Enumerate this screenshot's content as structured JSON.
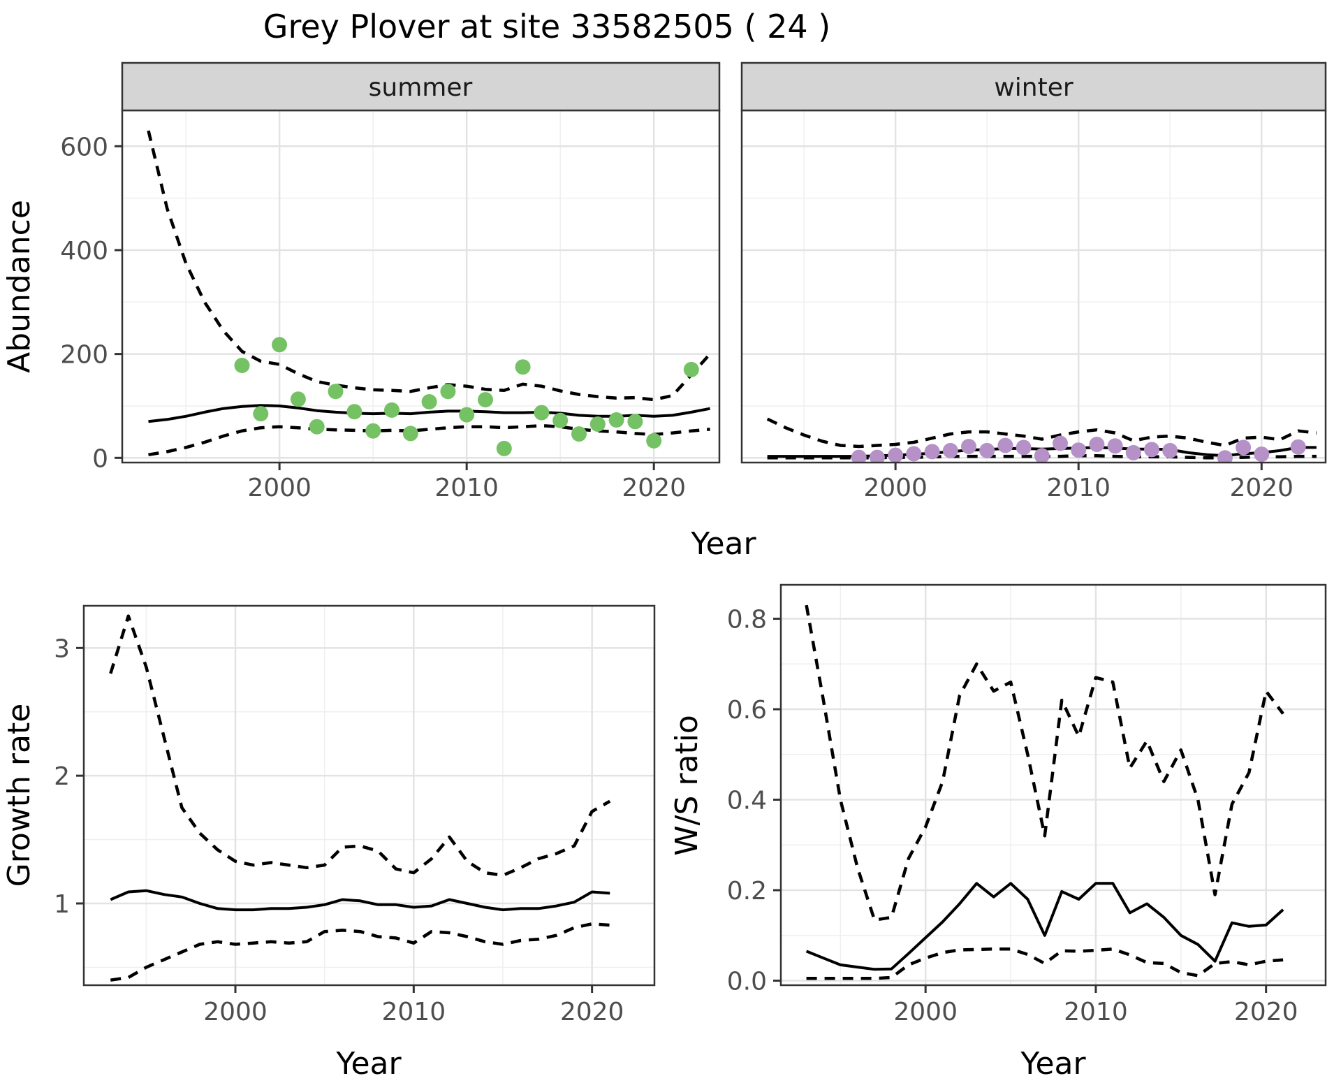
{
  "title": "Grey Plover at site 33582505 ( 24 )",
  "colors": {
    "summer_points": "#74c264",
    "winter_points": "#b691c8",
    "line": "#000000",
    "strip_background": "#d5d5d5",
    "panel_border": "#333333",
    "grid_major": "#e3e3e3",
    "grid_minor": "#efefef",
    "tick_label": "#4d4d4d"
  },
  "chart_data": [
    {
      "type": "line+scatter",
      "facet_label": "summer",
      "xlabel": "Year",
      "ylabel": "Abundance",
      "xlim": [
        1991.6,
        2023.5
      ],
      "ylim": [
        -9,
        669
      ],
      "xticks": [
        2000,
        2010,
        2020
      ],
      "xticklabels": [
        "2000",
        "2010",
        "2020"
      ],
      "xminor": [
        1995,
        2005,
        2015
      ],
      "yticks": [
        0,
        200,
        400,
        600
      ],
      "yticklabels": [
        "0",
        "200",
        "400",
        "600"
      ],
      "yminor": [
        100,
        300,
        500
      ],
      "grid": true,
      "series": [
        {
          "name": "median",
          "style": "solid",
          "start_year": 1993,
          "values": [
            70,
            74,
            80,
            88,
            95,
            99,
            101,
            100,
            96,
            91,
            88,
            86,
            85,
            86,
            85,
            88,
            90,
            90,
            89,
            87,
            87,
            88,
            86,
            82,
            80,
            80,
            82,
            80,
            82,
            88,
            95
          ]
        },
        {
          "name": "upper_ci",
          "style": "dashed",
          "start_year": 1993,
          "values": [
            630,
            480,
            375,
            300,
            245,
            205,
            186,
            180,
            162,
            147,
            140,
            135,
            131,
            130,
            128,
            135,
            141,
            138,
            132,
            130,
            142,
            138,
            129,
            122,
            118,
            115,
            116,
            112,
            120,
            160,
            200
          ]
        },
        {
          "name": "lower_ci",
          "style": "dashed",
          "start_year": 1993,
          "values": [
            6,
            12,
            20,
            30,
            42,
            52,
            58,
            60,
            58,
            55,
            54,
            53,
            52,
            53,
            52,
            55,
            58,
            60,
            60,
            58,
            60,
            62,
            60,
            55,
            52,
            50,
            47,
            45,
            48,
            52,
            55
          ]
        }
      ],
      "points": {
        "name": "observed-counts",
        "color": "#74c264",
        "data": [
          [
            1998,
            178
          ],
          [
            1999,
            85
          ],
          [
            2000,
            218
          ],
          [
            2001,
            113
          ],
          [
            2002,
            60
          ],
          [
            2003,
            128
          ],
          [
            2004,
            89
          ],
          [
            2005,
            52
          ],
          [
            2006,
            92
          ],
          [
            2007,
            47
          ],
          [
            2008,
            108
          ],
          [
            2009,
            128
          ],
          [
            2010,
            83
          ],
          [
            2011,
            112
          ],
          [
            2012,
            18
          ],
          [
            2013,
            175
          ],
          [
            2014,
            87
          ],
          [
            2015,
            72
          ],
          [
            2016,
            46
          ],
          [
            2017,
            65
          ],
          [
            2018,
            73
          ],
          [
            2019,
            70
          ],
          [
            2020,
            33
          ],
          [
            2022,
            170
          ]
        ]
      }
    },
    {
      "type": "line+scatter",
      "facet_label": "winter",
      "xlabel": "Year",
      "ylabel": "Abundance",
      "xlim": [
        1991.6,
        2023.5
      ],
      "ylim": [
        -9,
        669
      ],
      "xticks": [
        2000,
        2010,
        2020
      ],
      "xticklabels": [
        "2000",
        "2010",
        "2020"
      ],
      "xminor": [
        1995,
        2005,
        2015
      ],
      "yticks": [
        0,
        200,
        400,
        600
      ],
      "yticklabels": [
        "0",
        "200",
        "400",
        "600"
      ],
      "yminor": [
        100,
        300,
        500
      ],
      "grid": true,
      "series": [
        {
          "name": "median",
          "style": "solid",
          "start_year": 1993,
          "values": [
            3,
            3,
            3,
            3,
            3,
            3,
            4,
            5,
            7,
            9,
            12,
            15,
            16,
            18,
            18,
            17,
            18,
            19,
            20,
            19,
            17,
            17,
            16,
            10,
            6,
            4,
            8,
            10,
            14,
            20,
            20
          ]
        },
        {
          "name": "upper_ci",
          "style": "dashed",
          "start_year": 1993,
          "values": [
            75,
            58,
            44,
            32,
            24,
            22,
            24,
            26,
            30,
            38,
            46,
            50,
            50,
            46,
            42,
            36,
            44,
            50,
            54,
            48,
            33,
            40,
            42,
            38,
            30,
            24,
            38,
            40,
            35,
            52,
            48
          ]
        },
        {
          "name": "lower_ci",
          "style": "dashed",
          "start_year": 1993,
          "values": [
            0,
            0,
            0,
            0,
            0,
            0,
            0,
            1,
            1,
            2,
            3,
            3,
            3,
            3,
            3,
            3,
            3,
            4,
            4,
            3,
            2,
            2,
            2,
            1,
            0,
            0,
            1,
            2,
            2,
            3,
            3
          ]
        }
      ],
      "points": {
        "name": "observed-counts",
        "color": "#b691c8",
        "data": [
          [
            1998,
            1
          ],
          [
            1999,
            1
          ],
          [
            2000,
            5
          ],
          [
            2001,
            8
          ],
          [
            2002,
            12
          ],
          [
            2003,
            14
          ],
          [
            2004,
            22
          ],
          [
            2005,
            14
          ],
          [
            2006,
            24
          ],
          [
            2007,
            20
          ],
          [
            2008,
            4
          ],
          [
            2009,
            28
          ],
          [
            2010,
            15
          ],
          [
            2011,
            26
          ],
          [
            2012,
            23
          ],
          [
            2013,
            10
          ],
          [
            2014,
            16
          ],
          [
            2015,
            14
          ],
          [
            2018,
            0
          ],
          [
            2019,
            20
          ],
          [
            2020,
            7
          ],
          [
            2022,
            21
          ]
        ]
      }
    },
    {
      "type": "line",
      "facet_label": "",
      "xlabel": "Year",
      "ylabel": "Growth rate",
      "xlim": [
        1991.5,
        2023.5
      ],
      "ylim": [
        0.36,
        3.33
      ],
      "xticks": [
        2000,
        2010,
        2020
      ],
      "xticklabels": [
        "2000",
        "2010",
        "2020"
      ],
      "xminor": [
        1995,
        2005,
        2015
      ],
      "yticks": [
        1,
        2,
        3
      ],
      "yticklabels": [
        "1",
        "2",
        "3"
      ],
      "yminor": [
        0.5,
        1.5,
        2.5
      ],
      "grid": true,
      "series": [
        {
          "name": "median",
          "style": "solid",
          "start_year": 1993,
          "values": [
            1.03,
            1.09,
            1.1,
            1.07,
            1.05,
            1.0,
            0.96,
            0.95,
            0.95,
            0.96,
            0.96,
            0.97,
            0.99,
            1.03,
            1.02,
            0.99,
            0.99,
            0.97,
            0.98,
            1.03,
            1.0,
            0.97,
            0.95,
            0.96,
            0.96,
            0.98,
            1.01,
            1.09,
            1.08
          ]
        },
        {
          "name": "upper_ci",
          "style": "dashed",
          "start_year": 1993,
          "values": [
            2.8,
            3.25,
            2.85,
            2.3,
            1.75,
            1.55,
            1.42,
            1.33,
            1.3,
            1.32,
            1.3,
            1.28,
            1.3,
            1.44,
            1.45,
            1.41,
            1.27,
            1.24,
            1.35,
            1.52,
            1.33,
            1.24,
            1.22,
            1.28,
            1.35,
            1.39,
            1.45,
            1.72,
            1.8
          ]
        },
        {
          "name": "lower_ci",
          "style": "dashed",
          "start_year": 1993,
          "values": [
            0.4,
            0.42,
            0.5,
            0.56,
            0.62,
            0.68,
            0.7,
            0.68,
            0.69,
            0.7,
            0.69,
            0.7,
            0.78,
            0.79,
            0.78,
            0.74,
            0.73,
            0.69,
            0.78,
            0.77,
            0.74,
            0.7,
            0.68,
            0.71,
            0.72,
            0.75,
            0.81,
            0.84,
            0.83
          ]
        }
      ],
      "points": null
    },
    {
      "type": "line",
      "facet_label": "",
      "xlabel": "Year",
      "ylabel": "W/S ratio",
      "xlim": [
        1991.5,
        2023.5
      ],
      "ylim": [
        -0.01,
        0.875
      ],
      "xticks": [
        2000,
        2010,
        2020
      ],
      "xticklabels": [
        "2000",
        "2010",
        "2020"
      ],
      "xminor": [
        1995,
        2005,
        2015
      ],
      "yticks": [
        0,
        0.2,
        0.4,
        0.6,
        0.8
      ],
      "yticklabels": [
        "0.0",
        "0.2",
        "0.4",
        "0.6",
        "0.8"
      ],
      "yminor": [
        0.1,
        0.3,
        0.5,
        0.7
      ],
      "grid": true,
      "series": [
        {
          "name": "median",
          "style": "solid",
          "start_year": 1993,
          "values": [
            0.065,
            0.05,
            0.035,
            0.03,
            0.025,
            0.026,
            0.06,
            0.095,
            0.13,
            0.17,
            0.215,
            0.185,
            0.215,
            0.18,
            0.1,
            0.197,
            0.18,
            0.215,
            0.215,
            0.15,
            0.17,
            0.14,
            0.1,
            0.08,
            0.043,
            0.128,
            0.12,
            0.123,
            0.157
          ]
        },
        {
          "name": "upper_ci",
          "style": "dashed",
          "start_year": 1993,
          "values": [
            0.83,
            0.62,
            0.4,
            0.25,
            0.134,
            0.14,
            0.27,
            0.34,
            0.44,
            0.63,
            0.7,
            0.64,
            0.66,
            0.5,
            0.32,
            0.62,
            0.54,
            0.67,
            0.66,
            0.47,
            0.53,
            0.44,
            0.51,
            0.4,
            0.19,
            0.39,
            0.46,
            0.64,
            0.59
          ]
        },
        {
          "name": "lower_ci",
          "style": "dashed",
          "start_year": 1993,
          "values": [
            0.005,
            0.005,
            0.005,
            0.005,
            0.005,
            0.007,
            0.035,
            0.05,
            0.062,
            0.068,
            0.069,
            0.07,
            0.07,
            0.058,
            0.038,
            0.066,
            0.065,
            0.067,
            0.07,
            0.057,
            0.04,
            0.038,
            0.018,
            0.011,
            0.038,
            0.042,
            0.035,
            0.043,
            0.046
          ]
        }
      ],
      "points": null
    }
  ]
}
